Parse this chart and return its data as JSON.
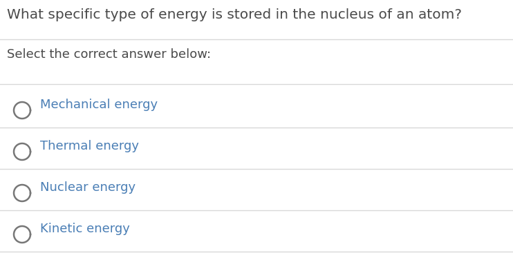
{
  "title": "What specific type of energy is stored in the nucleus of an atom?",
  "subtitle": "Select the correct answer below:",
  "options": [
    "Mechanical energy",
    "Thermal energy",
    "Nuclear energy",
    "Kinetic energy"
  ],
  "title_color": "#4a4a4a",
  "subtitle_color": "#4a4a4a",
  "option_color": "#4a7eb5",
  "background_color": "#ffffff",
  "line_color": "#d8d8d8",
  "circle_edgecolor": "#777777",
  "title_fontsize": 14.5,
  "subtitle_fontsize": 13,
  "option_fontsize": 13,
  "fig_width": 7.42,
  "fig_height": 3.96,
  "dpi": 100
}
